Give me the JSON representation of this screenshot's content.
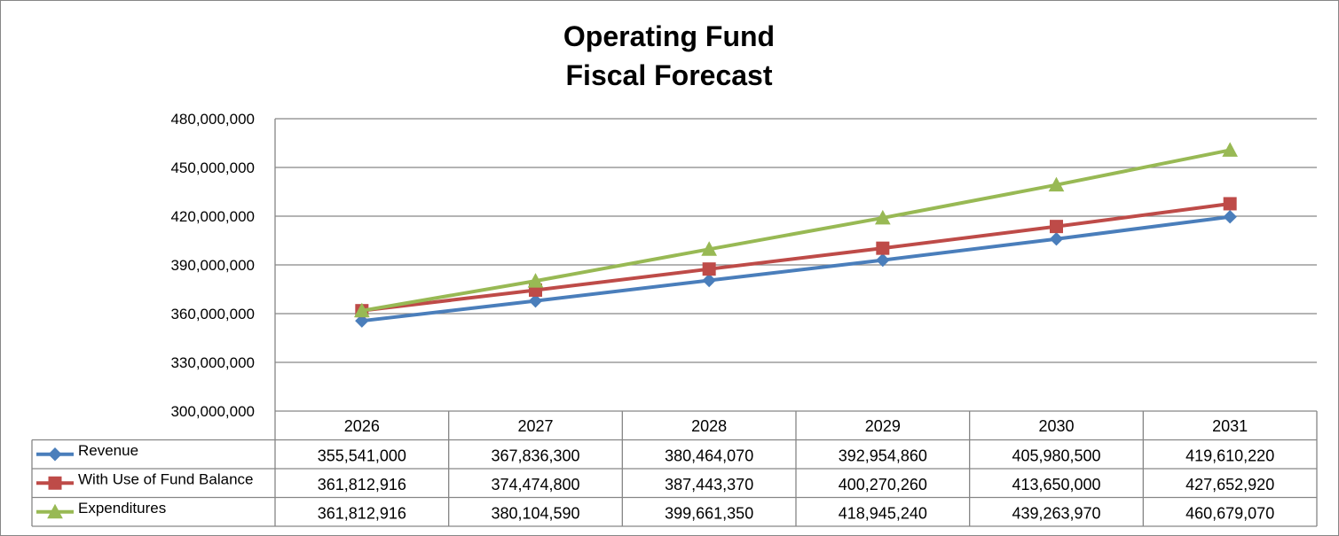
{
  "chart_data": {
    "type": "line",
    "title": [
      "Operating Fund",
      "Fiscal Forecast"
    ],
    "xlabel": "",
    "ylabel": "",
    "categories": [
      "2026",
      "2027",
      "2028",
      "2029",
      "2030",
      "2031"
    ],
    "ylim": [
      300000000,
      480000000
    ],
    "yticks": [
      300000000,
      330000000,
      360000000,
      390000000,
      420000000,
      450000000,
      480000000
    ],
    "ytick_labels": [
      "300,000,000",
      "330,000,000",
      "360,000,000",
      "390,000,000",
      "420,000,000",
      "450,000,000",
      "480,000,000"
    ],
    "grid": true,
    "legend_placement": "data-table",
    "series": [
      {
        "name": "Revenue",
        "marker": "diamond",
        "color": "#4a7ebb",
        "values": [
          355541000,
          367836300,
          380464070,
          392954860,
          405980500,
          419610220
        ],
        "labels": [
          "355,541,000",
          "367,836,300",
          "380,464,070",
          "392,954,860",
          "405,980,500",
          "419,610,220"
        ]
      },
      {
        "name": "With Use of Fund Balance",
        "marker": "square",
        "color": "#be4b48",
        "values": [
          361812916,
          374474800,
          387443370,
          400270260,
          413650000,
          427652920
        ],
        "labels": [
          "361,812,916",
          "374,474,800",
          "387,443,370",
          "400,270,260",
          "413,650,000",
          "427,652,920"
        ]
      },
      {
        "name": "Expenditures",
        "marker": "triangle",
        "color": "#98b954",
        "values": [
          361812916,
          380104590,
          399661350,
          418945240,
          439263970,
          460679070
        ],
        "labels": [
          "361,812,916",
          "380,104,590",
          "399,661,350",
          "418,945,240",
          "439,263,970",
          "460,679,070"
        ]
      }
    ]
  }
}
